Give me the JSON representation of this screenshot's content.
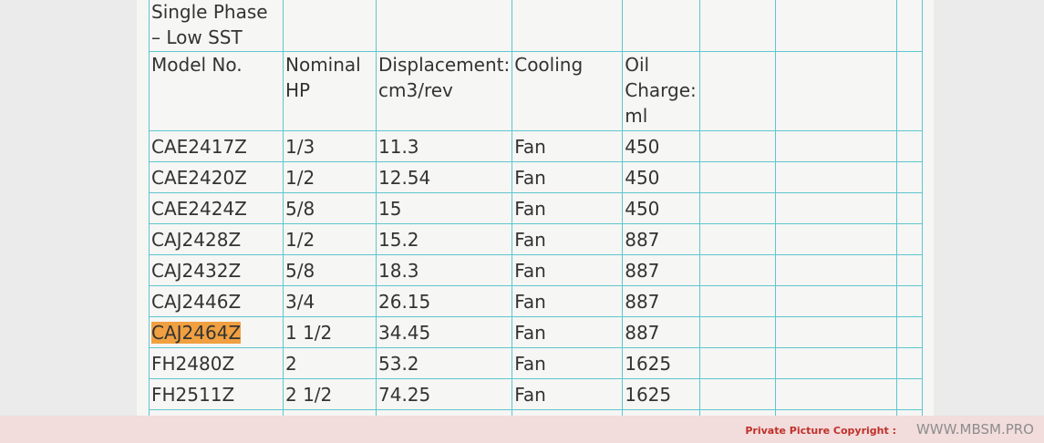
{
  "table": {
    "title": "Single Phase – Low SST",
    "header": [
      "Model No.",
      "Nominal HP",
      "Displacement: cm3/rev",
      "Cooling",
      "Oil Charge: ml"
    ],
    "rows": [
      [
        "CAE2417Z",
        "1/3",
        "11.3",
        "Fan",
        "450"
      ],
      [
        "CAE2420Z",
        "1/2",
        "12.54",
        "Fan",
        "450"
      ],
      [
        "CAE2424Z",
        "5/8",
        "15",
        "Fan",
        "450"
      ],
      [
        "CAJ2428Z",
        "1/2",
        "15.2",
        "Fan",
        "887"
      ],
      [
        "CAJ2432Z",
        "5/8",
        "18.3",
        "Fan",
        "887"
      ],
      [
        "CAJ2446Z",
        "3/4",
        "26.15",
        "Fan",
        "887"
      ],
      [
        "CAJ2464Z",
        "1 1/2",
        "34.45",
        "Fan",
        "887"
      ],
      [
        "FH2480Z",
        "2",
        "53.2",
        "Fan",
        "1625"
      ],
      [
        "FH2511Z",
        "2 1/2",
        "74.25",
        "Fan",
        "1625"
      ]
    ]
  },
  "footer": {
    "copyright": "Private Picture Copyright :",
    "site": "WWW.MBSM.PRO"
  }
}
